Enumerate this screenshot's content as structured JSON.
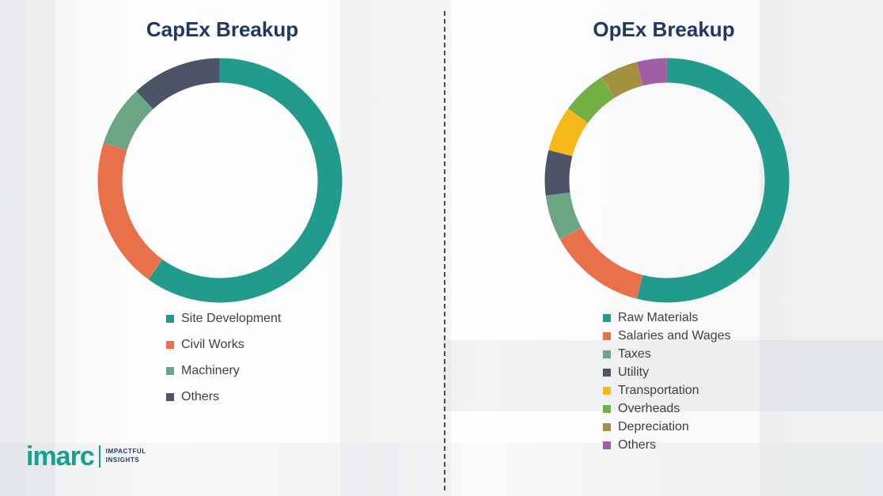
{
  "chart_data": [
    {
      "type": "pie",
      "subtype": "donut",
      "title": "CapEx Breakup",
      "categories": [
        "Site Development",
        "Civil Works",
        "Machinery",
        "Others"
      ],
      "values": [
        60,
        20,
        8,
        12
      ],
      "colors": [
        "#239B8B",
        "#E8714C",
        "#6CA584",
        "#4C5567"
      ],
      "legend_position": "bottom-left",
      "value_units": "percent-estimated",
      "title_color": "#1F3864"
    },
    {
      "type": "pie",
      "subtype": "donut",
      "title": "OpEx Breakup",
      "categories": [
        "Raw Materials",
        "Salaries and Wages",
        "Taxes",
        "Utility",
        "Transportation",
        "Overheads",
        "Depreciation",
        "Others"
      ],
      "values": [
        54,
        13,
        6,
        6,
        6,
        6,
        5,
        4
      ],
      "colors": [
        "#239B8B",
        "#E8714C",
        "#6CA584",
        "#4C5567",
        "#F6B818",
        "#72B043",
        "#A3913F",
        "#A05EA5"
      ],
      "legend_position": "bottom-left",
      "value_units": "percent-estimated",
      "title_color": "#1F3864"
    }
  ],
  "logo": {
    "brand": "imarc",
    "tagline_line1": "IMPACTFUL",
    "tagline_line2": "INSIGHTS",
    "brand_color": "#16A08F"
  }
}
